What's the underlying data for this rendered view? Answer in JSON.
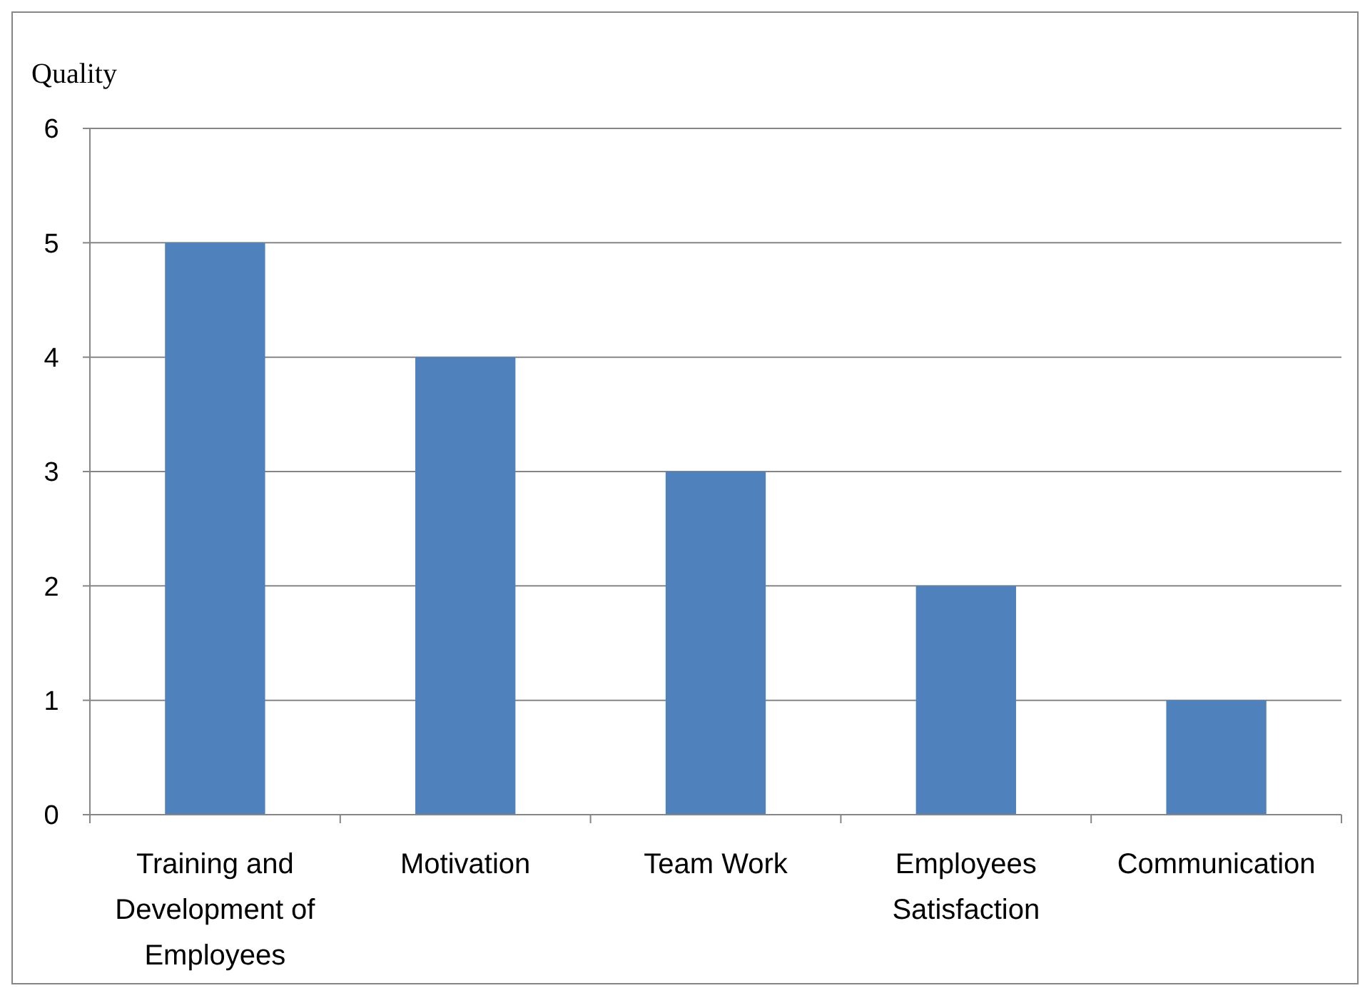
{
  "chart_data": {
    "type": "bar",
    "ylabel": "Quality",
    "categories": [
      "Training and Development of Employees",
      "Motivation",
      "Team Work",
      "Employees Satisfaction",
      "Communication"
    ],
    "values": [
      5,
      4,
      3,
      2,
      1
    ],
    "color": "#4f81bd",
    "ylim": [
      0,
      6
    ],
    "yticks": [
      0,
      1,
      2,
      3,
      4,
      5,
      6
    ],
    "grid": "y"
  }
}
